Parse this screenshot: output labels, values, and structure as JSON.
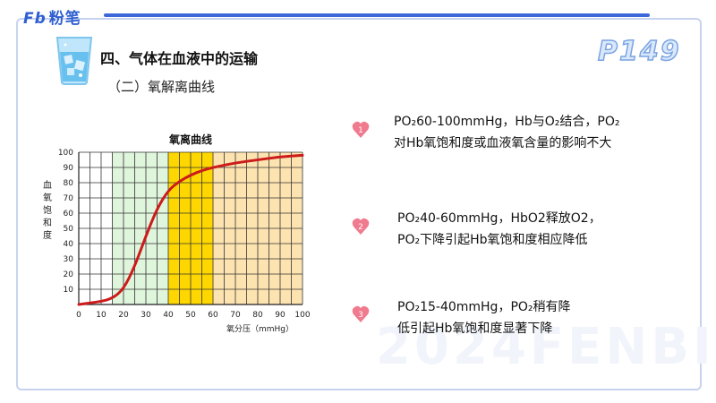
{
  "brand": {
    "logo_mark": "Fb",
    "logo_text": "粉笔"
  },
  "header": {
    "title": "四、气体在血液中的运输",
    "subtitle": "（二）氧解离曲线",
    "page_number": "P149"
  },
  "watermark": "2024FENBI",
  "points": [
    {
      "number": "1",
      "line1": "PO₂60-100mmHg，Hb与O₂结合，PO₂",
      "line2": "对Hb氧饱和度或血液氧含量的影响不大"
    },
    {
      "number": "2",
      "line1": "PO₂40-60mmHg，HbO2释放O2，",
      "line2": "PO₂下降引起Hb氧饱和度相应降低"
    },
    {
      "number": "3",
      "line1": "PO₂15-40mmHg，PO₂稍有降",
      "line2": "低引起Hb氧饱和度显著下降"
    }
  ],
  "colors": {
    "accent": "#3b67d8",
    "badge": "#f07a8e",
    "curve": "#cc1b1b",
    "band_green": "#dff5dc",
    "band_yellow": "#ffd700",
    "band_orange": "#fde3b0"
  },
  "chart_data": {
    "type": "line",
    "title": "氧离曲线",
    "xlabel": "氧分压（mmHg）",
    "ylabel": "血氧饱和度",
    "xlim": [
      0,
      100
    ],
    "ylim": [
      0,
      100
    ],
    "x_ticks": [
      0,
      10,
      20,
      30,
      40,
      50,
      60,
      70,
      80,
      90,
      100
    ],
    "y_ticks": [
      10,
      20,
      30,
      40,
      50,
      60,
      70,
      80,
      90,
      100
    ],
    "grid": true,
    "bands": [
      {
        "from": 15,
        "to": 40,
        "color": "#dff5dc"
      },
      {
        "from": 40,
        "to": 60,
        "color": "#ffd700"
      },
      {
        "from": 60,
        "to": 100,
        "color": "#fde3b0"
      }
    ],
    "series": [
      {
        "x": [
          0,
          5,
          10,
          15,
          20,
          25,
          30,
          35,
          40,
          45,
          50,
          55,
          60,
          70,
          80,
          90,
          100
        ],
        "y": [
          0,
          1,
          2,
          4,
          10,
          25,
          45,
          63,
          75,
          81,
          85,
          88,
          90,
          93,
          95,
          97,
          98
        ]
      }
    ]
  }
}
